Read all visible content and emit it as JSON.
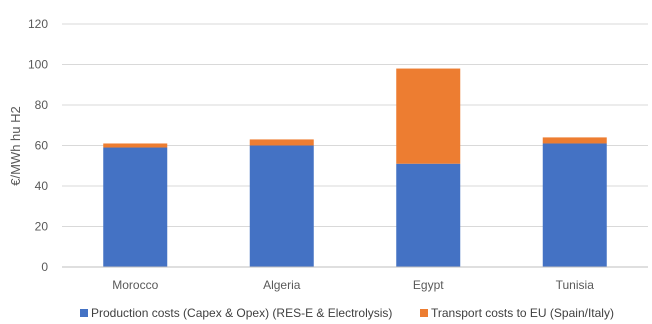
{
  "chart_data": {
    "type": "bar",
    "stacked": true,
    "categories": [
      "Morocco",
      "Algeria",
      "Egypt",
      "Tunisia"
    ],
    "series": [
      {
        "name": "Production costs (Capex & Opex) (RES-E & Electrolysis)",
        "values": [
          59,
          60,
          51,
          61
        ],
        "color": "#4472c4"
      },
      {
        "name": "Transport costs to EU (Spain/Italy)",
        "values": [
          2,
          3,
          47,
          3
        ],
        "color": "#ed7d31"
      }
    ],
    "ylabel": "€/MWh hu H2",
    "ylim": [
      0,
      120
    ],
    "yticks": [
      0,
      20,
      40,
      60,
      80,
      100,
      120
    ],
    "grid": true,
    "legend_position": "bottom"
  }
}
